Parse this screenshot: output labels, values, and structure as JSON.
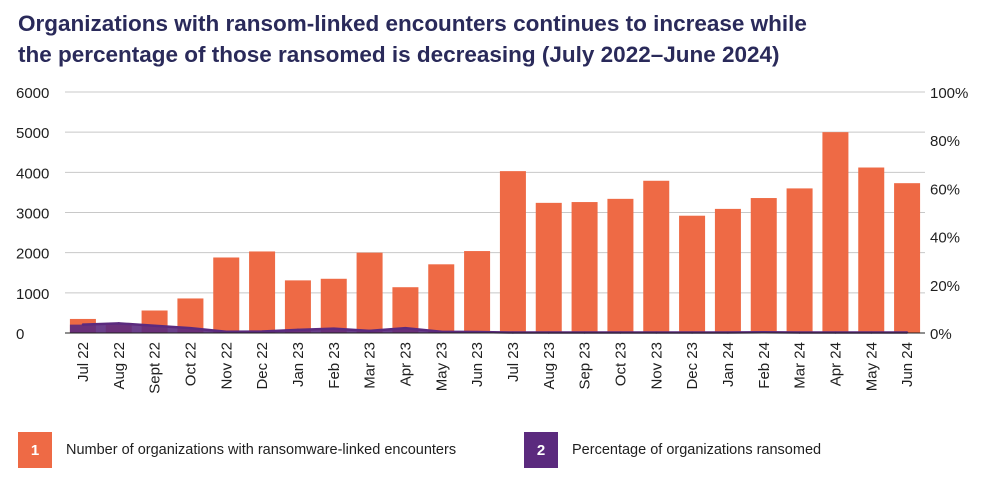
{
  "title": {
    "line1": "Organizations with ransom-linked encounters continues to increase while",
    "line2": "the percentage of those ransomed is decreasing (July 2022–June 2024)"
  },
  "colors": {
    "bar": "#ee6a45",
    "line": "#5b2a7e",
    "grid": "#c8c8c8",
    "axis": "#1f1f1f"
  },
  "legend": [
    {
      "number": "1",
      "label": "Number of organizations with ransomware-linked encounters",
      "color": "#ee6a45"
    },
    {
      "number": "2",
      "label": "Percentage of organizations ransomed",
      "color": "#5b2a7e"
    }
  ],
  "chart_data": {
    "type": "bar",
    "title": "Organizations with ransom-linked encounters continues to increase while the percentage of those ransomed is decreasing (July 2022–June 2024)",
    "categories": [
      "Jul 22",
      "Aug 22",
      "Sept 22",
      "Oct 22",
      "Nov 22",
      "Dec 22",
      "Jan 23",
      "Feb 23",
      "Mar 23",
      "Apr 23",
      "May 23",
      "Jun 23",
      "Jul 23",
      "Aug 23",
      "Sep 23",
      "Oct 23",
      "Nov 23",
      "Dec 23",
      "Jan 24",
      "Feb 24",
      "Mar 24",
      "Apr 24",
      "May 24",
      "Jun 24"
    ],
    "series": [
      {
        "name": "Number of organizations with ransomware-linked encounters",
        "axis": "left",
        "type": "bar",
        "values": [
          350,
          250,
          560,
          860,
          1880,
          2030,
          1310,
          1350,
          2000,
          1140,
          1710,
          2040,
          4030,
          3240,
          3260,
          3340,
          3790,
          2920,
          3090,
          3360,
          3600,
          5000,
          4120,
          3730
        ]
      },
      {
        "name": "Percentage of organizations ransomed",
        "axis": "right",
        "type": "area",
        "values": [
          3.5,
          4.0,
          3.0,
          2.0,
          0.5,
          0.6,
          1.3,
          1.8,
          0.9,
          2.0,
          0.5,
          0.4,
          0.2,
          0.2,
          0.2,
          0.2,
          0.2,
          0.2,
          0.2,
          0.3,
          0.2,
          0.2,
          0.2,
          0.2
        ]
      }
    ],
    "y_left": {
      "min": 0,
      "max": 6000,
      "ticks": [
        "0",
        "1000",
        "2000",
        "3000",
        "4000",
        "5000",
        "6000"
      ]
    },
    "y_right": {
      "min": 0,
      "max": 100,
      "ticks": [
        "0%",
        "20%",
        "40%",
        "60%",
        "80%",
        "100%"
      ]
    },
    "grid": true
  }
}
